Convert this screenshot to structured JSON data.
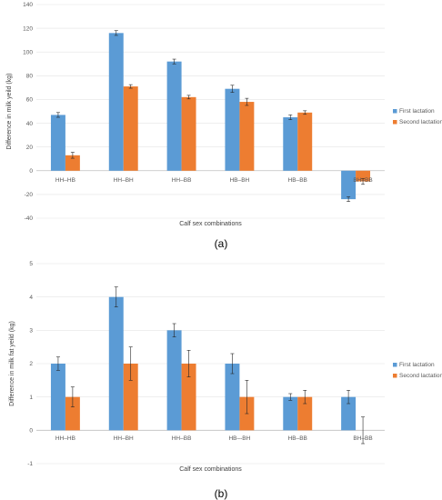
{
  "chart_data": [
    {
      "type": "bar",
      "caption": "(a)",
      "categories": [
        "HH–HB",
        "HH–BH",
        "HH–BB",
        "HB–BH",
        "HB–BB",
        "BH–BB"
      ],
      "series": [
        {
          "name": "First lactation",
          "color": "#5B9BD5",
          "values": [
            47,
            116,
            92,
            69,
            45,
            -24
          ],
          "errors": [
            2,
            2,
            2,
            3,
            2,
            2
          ]
        },
        {
          "name": "Second lactation",
          "color": "#ED7D31",
          "values": [
            13,
            71,
            62,
            58,
            49,
            -9
          ],
          "errors": [
            2.5,
            1.5,
            1.5,
            3,
            1.5,
            2.5
          ]
        }
      ],
      "xlabel": "Calf sex combinations",
      "ylabel": "Difference in milk yeild (kg)",
      "ylim": [
        -40,
        140
      ],
      "yticks": [
        -40,
        -20,
        0,
        20,
        40,
        60,
        80,
        100,
        120,
        140
      ],
      "legend": "right"
    },
    {
      "type": "bar",
      "caption": "(b)",
      "categories": [
        "HH–HB",
        "HH–BH",
        "HH–BB",
        "HB–-BH",
        "HB–BB",
        "BH–BB"
      ],
      "series": [
        {
          "name": "First lactation",
          "color": "#5B9BD5",
          "values": [
            2,
            4,
            3,
            2,
            1,
            1
          ],
          "errors": [
            0.2,
            0.3,
            0.2,
            0.3,
            0.1,
            0.2
          ]
        },
        {
          "name": "Second lactation",
          "color": "#ED7D31",
          "values": [
            1,
            2,
            2,
            1,
            1,
            0
          ],
          "errors": [
            0.3,
            0.5,
            0.4,
            0.5,
            0.2,
            0.4
          ]
        }
      ],
      "xlabel": "Calf sex combinations",
      "ylabel": "Difference in milk fat yeild (kg)",
      "ylim": [
        -1,
        5
      ],
      "yticks": [
        -1,
        0,
        1,
        2,
        3,
        4,
        5
      ],
      "legend": "right"
    }
  ]
}
